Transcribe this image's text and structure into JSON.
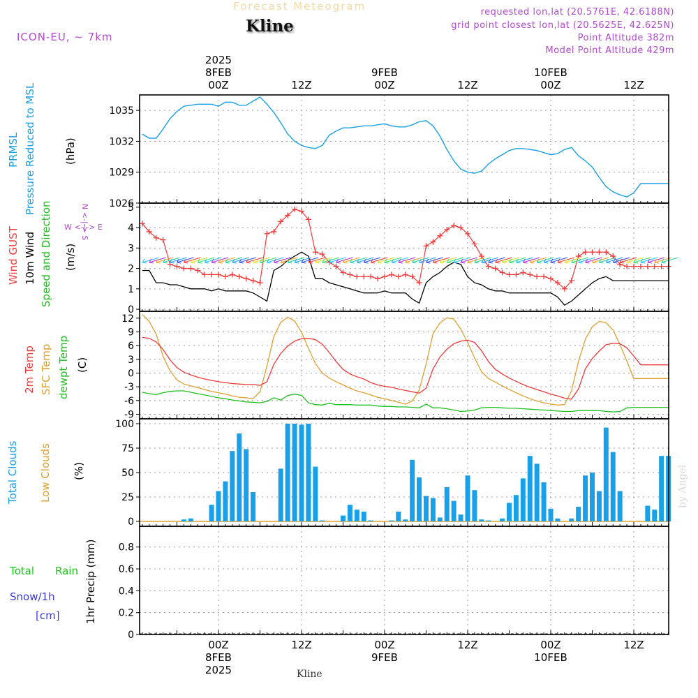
{
  "header": {
    "title": "Forecast Meteogram",
    "station": "Kline",
    "model": "ICON-EU, ~ 7km",
    "requested": "requested lon,lat (20.5761E, 42.6188N)",
    "gridpoint": "grid point closest lon,lat (20.5625E, 42.625N)",
    "point_alt": "Point Altitude 382m",
    "model_alt": "Model Point Altitude 429m",
    "footer_station": "Kline",
    "watermark": "by Angel"
  },
  "colors": {
    "pressure": "#1aa0e8",
    "gust": "#f03a3a",
    "wind": "#000000",
    "temp2m": "#f03a3a",
    "sfc": "#e0a030",
    "dewpt": "#20c020",
    "clouds": "#1aa0e8",
    "purple": "#b04ad0",
    "snow": "#3a3ae0",
    "green": "#20c020",
    "orange": "#e0a030"
  },
  "time_axis": {
    "top_labels": [
      {
        "hour": 0,
        "lines": [
          "2025",
          "8FEB",
          "00Z"
        ]
      },
      {
        "hour": 12,
        "lines": [
          "12Z"
        ]
      },
      {
        "hour": 24,
        "lines": [
          "9FEB",
          "00Z"
        ]
      },
      {
        "hour": 36,
        "lines": [
          "12Z"
        ]
      },
      {
        "hour": 48,
        "lines": [
          "10FEB",
          "00Z"
        ]
      },
      {
        "hour": 60,
        "lines": [
          "12Z"
        ]
      }
    ],
    "bottom_labels": [
      {
        "hour": 0,
        "lines": [
          "00Z",
          "8FEB",
          "2025"
        ]
      },
      {
        "hour": 12,
        "lines": [
          "12Z"
        ]
      },
      {
        "hour": 24,
        "lines": [
          "00Z",
          "9FEB"
        ]
      },
      {
        "hour": 36,
        "lines": [
          "12Z"
        ]
      },
      {
        "hour": 48,
        "lines": [
          "00Z",
          "10FEB"
        ]
      },
      {
        "hour": 60,
        "lines": [
          "12Z"
        ]
      }
    ]
  },
  "panel_labels": {
    "pressure": {
      "l1": "PRMSL",
      "l2": "Pressure Reduced to MSL",
      "unit": "(hPa)"
    },
    "wind": {
      "l1": "Wind GUST",
      "l2": "10m Wind",
      "l3": "Speed and Direction",
      "unit": "(m/s)",
      "compass_ns": "N <-|-> S",
      "compass_we": "W <-|-> E"
    },
    "temp": {
      "l1": "2m Temp",
      "l2": "SFC Temp",
      "l3": "dewpt Temp",
      "unit": "(C)"
    },
    "clouds": {
      "l1": "Total Clouds",
      "l2": "Low Clouds",
      "unit": "(%)"
    },
    "precip": {
      "l1": "Total",
      "l1b": "Rain",
      "l2": "Snow/1h",
      "l3": "[cm]",
      "unit": "1hr Precip (mm)"
    }
  },
  "chart_data": [
    {
      "type": "line",
      "panel": "pressure",
      "yticks": [
        1026,
        1029,
        1032,
        1035
      ],
      "ylim": [
        1026,
        1036.5
      ],
      "x": [
        -11,
        -10,
        -9,
        -8,
        -7,
        -6,
        -5,
        -4,
        -3,
        -2,
        -1,
        0,
        1,
        2,
        3,
        4,
        5,
        6,
        7,
        8,
        9,
        10,
        11,
        12,
        13,
        14,
        15,
        16,
        17,
        18,
        19,
        20,
        21,
        22,
        23,
        24,
        25,
        26,
        27,
        28,
        29,
        30,
        31,
        32,
        33,
        34,
        35,
        36,
        37,
        38,
        39,
        40,
        41,
        42,
        43,
        44,
        45,
        46,
        47,
        48,
        49,
        50,
        51,
        52,
        53,
        54,
        55,
        56,
        57,
        58,
        59,
        60,
        61,
        62,
        63,
        64,
        65
      ],
      "series": [
        {
          "name": "PRMSL",
          "values": [
            1032.7,
            1032.3,
            1032.3,
            1033.2,
            1034.2,
            1034.9,
            1035.4,
            1035.5,
            1035.6,
            1035.6,
            1035.6,
            1035.4,
            1035.8,
            1035.8,
            1035.5,
            1035.5,
            1035.9,
            1036.3,
            1035.6,
            1034.8,
            1033.8,
            1032.7,
            1032.0,
            1031.6,
            1031.4,
            1031.3,
            1031.6,
            1032.6,
            1033.0,
            1033.3,
            1033.3,
            1033.4,
            1033.5,
            1033.5,
            1033.6,
            1033.7,
            1033.5,
            1033.4,
            1033.4,
            1033.6,
            1033.9,
            1034.0,
            1033.5,
            1032.5,
            1031.2,
            1030.1,
            1029.3,
            1029.0,
            1028.9,
            1029.1,
            1029.8,
            1030.3,
            1030.7,
            1031.1,
            1031.3,
            1031.3,
            1031.2,
            1031.1,
            1030.9,
            1030.7,
            1030.8,
            1031.2,
            1031.4,
            1030.6,
            1030.1,
            1029.5,
            1028.5,
            1027.6,
            1027.1,
            1026.8,
            1026.6,
            1027.0,
            1027.9,
            1027.9,
            1027.9,
            1027.9,
            1027.9
          ]
        }
      ]
    },
    {
      "type": "line",
      "panel": "wind",
      "yticks": [
        0,
        1,
        2,
        3,
        4,
        5
      ],
      "ylim": [
        -0.1,
        5.2
      ],
      "x": [
        -11,
        -10,
        -9,
        -8,
        -7,
        -6,
        -5,
        -4,
        -3,
        -2,
        -1,
        0,
        1,
        2,
        3,
        4,
        5,
        6,
        7,
        8,
        9,
        10,
        11,
        12,
        13,
        14,
        15,
        16,
        17,
        18,
        19,
        20,
        21,
        22,
        23,
        24,
        25,
        26,
        27,
        28,
        29,
        30,
        31,
        32,
        33,
        34,
        35,
        36,
        37,
        38,
        39,
        40,
        41,
        42,
        43,
        44,
        45,
        46,
        47,
        48,
        49,
        50,
        51,
        52,
        53,
        54,
        55,
        56,
        57,
        58,
        59,
        60,
        61,
        62,
        63,
        64,
        65
      ],
      "series": [
        {
          "name": "Wind GUST",
          "values": [
            4.2,
            3.8,
            3.5,
            3.4,
            2.2,
            2.1,
            2.0,
            2.0,
            1.9,
            1.7,
            1.7,
            1.7,
            1.6,
            1.7,
            1.6,
            1.5,
            1.4,
            1.3,
            3.7,
            3.8,
            4.3,
            4.6,
            4.9,
            4.8,
            4.4,
            2.8,
            2.7,
            2.3,
            2.1,
            1.8,
            1.7,
            1.6,
            1.6,
            1.6,
            1.5,
            1.6,
            1.7,
            1.6,
            1.7,
            1.6,
            1.3,
            3.1,
            3.3,
            3.6,
            3.9,
            4.1,
            4.0,
            3.7,
            3.2,
            2.6,
            2.1,
            2.0,
            1.8,
            1.7,
            1.7,
            1.8,
            1.7,
            1.6,
            1.6,
            1.5,
            1.3,
            1.0,
            1.4,
            2.6,
            2.8,
            2.8,
            2.8,
            2.8,
            2.6,
            2.2,
            2.1,
            2.1,
            2.1,
            2.1,
            2.1,
            2.1,
            2.1
          ]
        },
        {
          "name": "10m Wind",
          "values": [
            1.9,
            1.9,
            1.3,
            1.3,
            1.2,
            1.2,
            1.1,
            1.0,
            1.0,
            1.0,
            0.9,
            1.0,
            0.9,
            0.9,
            0.9,
            0.9,
            0.8,
            0.6,
            0.4,
            1.9,
            2.1,
            2.4,
            2.6,
            2.8,
            2.6,
            1.5,
            1.5,
            1.3,
            1.2,
            1.1,
            1.0,
            0.9,
            0.8,
            0.8,
            0.8,
            0.9,
            0.8,
            0.8,
            0.8,
            0.5,
            0.3,
            1.3,
            1.6,
            1.8,
            2.1,
            2.3,
            2.2,
            1.6,
            1.3,
            1.2,
            1.0,
            0.9,
            0.9,
            0.8,
            0.8,
            0.8,
            0.8,
            0.8,
            0.8,
            0.8,
            0.6,
            0.2,
            0.4,
            0.7,
            1.0,
            1.3,
            1.5,
            1.6,
            1.4,
            1.4,
            1.4,
            1.4,
            1.4,
            1.4,
            1.4,
            1.4,
            1.4
          ]
        }
      ]
    },
    {
      "type": "line",
      "panel": "temp",
      "yticks": [
        -9,
        -6,
        -3,
        0,
        3,
        6,
        9,
        12
      ],
      "ylim": [
        -10,
        13.5
      ],
      "x": [
        -11,
        -10,
        -9,
        -8,
        -7,
        -6,
        -5,
        -4,
        -3,
        -2,
        -1,
        0,
        1,
        2,
        3,
        4,
        5,
        6,
        7,
        8,
        9,
        10,
        11,
        12,
        13,
        14,
        15,
        16,
        17,
        18,
        19,
        20,
        21,
        22,
        23,
        24,
        25,
        26,
        27,
        28,
        29,
        30,
        31,
        32,
        33,
        34,
        35,
        36,
        37,
        38,
        39,
        40,
        41,
        42,
        43,
        44,
        45,
        46,
        47,
        48,
        49,
        50,
        51,
        52,
        53,
        54,
        55,
        56,
        57,
        58,
        59,
        60,
        61,
        62,
        63,
        64,
        65
      ],
      "series": [
        {
          "name": "2m Temp",
          "values": [
            7.8,
            7.6,
            6.8,
            5.1,
            2.9,
            1.2,
            0.2,
            -0.4,
            -0.9,
            -1.3,
            -1.6,
            -1.9,
            -2.1,
            -2.3,
            -2.4,
            -2.5,
            -2.5,
            -2.7,
            -1.9,
            1.9,
            4.3,
            5.9,
            7.0,
            7.5,
            7.6,
            7.3,
            6.3,
            4.5,
            2.5,
            0.8,
            -0.2,
            -0.8,
            -1.3,
            -2.1,
            -2.6,
            -2.9,
            -3.1,
            -3.5,
            -3.8,
            -4.1,
            -4.4,
            -3.3,
            0.9,
            3.5,
            5.2,
            6.4,
            7.0,
            7.2,
            6.7,
            4.9,
            2.5,
            0.8,
            -0.2,
            -1.1,
            -1.8,
            -2.5,
            -3.1,
            -3.6,
            -4.1,
            -4.6,
            -5.0,
            -5.5,
            -5.7,
            -3.5,
            0.9,
            3.2,
            4.8,
            6.2,
            6.5,
            6.4,
            5.5,
            3.7,
            1.8,
            1.8,
            1.8,
            1.8,
            1.8
          ]
        },
        {
          "name": "SFC Temp",
          "values": [
            12.8,
            11.3,
            8.5,
            3.6,
            0.5,
            -1.5,
            -2.4,
            -2.8,
            -3.2,
            -3.6,
            -4.0,
            -4.3,
            -4.6,
            -5.0,
            -5.3,
            -5.4,
            -5.6,
            -4.1,
            1.5,
            8.0,
            11.1,
            12.2,
            11.4,
            8.9,
            5.4,
            2.1,
            0.0,
            -1.1,
            -1.9,
            -2.6,
            -3.3,
            -3.9,
            -4.3,
            -4.8,
            -5.3,
            -5.6,
            -6.0,
            -6.4,
            -6.8,
            -6.1,
            -3.7,
            2.0,
            8.6,
            11.0,
            12.1,
            11.8,
            9.6,
            6.7,
            3.3,
            0.3,
            -1.2,
            -2.0,
            -2.8,
            -3.6,
            -4.3,
            -5.0,
            -5.6,
            -6.1,
            -6.5,
            -6.8,
            -7.0,
            -6.9,
            -3.9,
            2.5,
            7.4,
            10.1,
            11.3,
            11.0,
            9.4,
            6.2,
            2.6,
            -1.2,
            -1.2,
            -1.2,
            -1.2,
            -1.2,
            -1.2
          ]
        },
        {
          "name": "dewpt Temp",
          "values": [
            -4.2,
            -4.5,
            -4.7,
            -4.3,
            -4.0,
            -3.9,
            -3.9,
            -4.2,
            -4.5,
            -4.8,
            -5.1,
            -5.4,
            -5.6,
            -5.9,
            -6.1,
            -6.3,
            -6.4,
            -6.5,
            -6.2,
            -5.4,
            -5.9,
            -4.9,
            -4.6,
            -4.9,
            -6.5,
            -6.9,
            -7.0,
            -6.6,
            -6.9,
            -6.9,
            -6.9,
            -7.0,
            -7.0,
            -7.0,
            -7.2,
            -7.3,
            -7.3,
            -7.4,
            -7.4,
            -7.5,
            -7.6,
            -6.8,
            -7.6,
            -7.6,
            -7.8,
            -8.1,
            -8.4,
            -8.3,
            -8.1,
            -7.6,
            -7.5,
            -7.5,
            -7.6,
            -7.7,
            -7.7,
            -7.8,
            -7.9,
            -8.0,
            -8.1,
            -8.2,
            -8.3,
            -8.4,
            -8.4,
            -8.2,
            -8.2,
            -8.2,
            -8.2,
            -8.4,
            -8.5,
            -8.4,
            -7.6,
            -7.5,
            -7.5,
            -7.5,
            -7.5,
            -7.5,
            -7.5
          ]
        }
      ]
    },
    {
      "type": "bar",
      "panel": "clouds",
      "yticks": [
        0,
        25,
        50,
        75,
        100
      ],
      "ylim": [
        -5,
        105
      ],
      "x": [
        -11,
        -10,
        -9,
        -8,
        -7,
        -6,
        -5,
        -4,
        -3,
        -2,
        -1,
        0,
        1,
        2,
        3,
        4,
        5,
        6,
        7,
        8,
        9,
        10,
        11,
        12,
        13,
        14,
        15,
        16,
        17,
        18,
        19,
        20,
        21,
        22,
        23,
        24,
        25,
        26,
        27,
        28,
        29,
        30,
        31,
        32,
        33,
        34,
        35,
        36,
        37,
        38,
        39,
        40,
        41,
        42,
        43,
        44,
        45,
        46,
        47,
        48,
        49,
        50,
        51,
        52,
        53,
        54,
        55,
        56,
        57,
        58,
        59,
        60,
        61,
        62,
        63,
        64,
        65
      ],
      "series": [
        {
          "name": "Total Clouds",
          "values": [
            0,
            0,
            0,
            0,
            0,
            0,
            2,
            3,
            0,
            0,
            17,
            31,
            41,
            72,
            90,
            74,
            30,
            0,
            0,
            0,
            54,
            100,
            100,
            99,
            100,
            56,
            1,
            0,
            0,
            6,
            17,
            12,
            10,
            1,
            0,
            0,
            1,
            10,
            2,
            63,
            45,
            26,
            24,
            4,
            35,
            21,
            7,
            47,
            32,
            2,
            1,
            0,
            3,
            19,
            27,
            44,
            67,
            59,
            40,
            13,
            3,
            0,
            3,
            15,
            47,
            50,
            31,
            96,
            71,
            31,
            0,
            0,
            0,
            16,
            12,
            67,
            67
          ]
        },
        {
          "name": "Low Clouds",
          "values": [
            0,
            0,
            0,
            0,
            0,
            0,
            0,
            0,
            0,
            0,
            0,
            0,
            0,
            0,
            0,
            0,
            0,
            0,
            0,
            0,
            0,
            0,
            0,
            0,
            0,
            0,
            0,
            0,
            0,
            0,
            0,
            0,
            0,
            0,
            0,
            0,
            0,
            0,
            0,
            0,
            0,
            0,
            0,
            0,
            0,
            0,
            0,
            0,
            0,
            0,
            0,
            0,
            0,
            0,
            0,
            0,
            0,
            0,
            0,
            0,
            0,
            0,
            0,
            0,
            0,
            0,
            0,
            0,
            0,
            0,
            0,
            0,
            0,
            0,
            0,
            0,
            0
          ]
        }
      ]
    },
    {
      "type": "bar",
      "panel": "precip",
      "yticks": [
        0,
        0.2,
        0.4,
        0.6,
        0.8
      ],
      "ylim": [
        0,
        0.99
      ],
      "series": [
        {
          "name": "Total Rain",
          "values": []
        },
        {
          "name": "Snow/1h",
          "values": []
        }
      ]
    }
  ]
}
